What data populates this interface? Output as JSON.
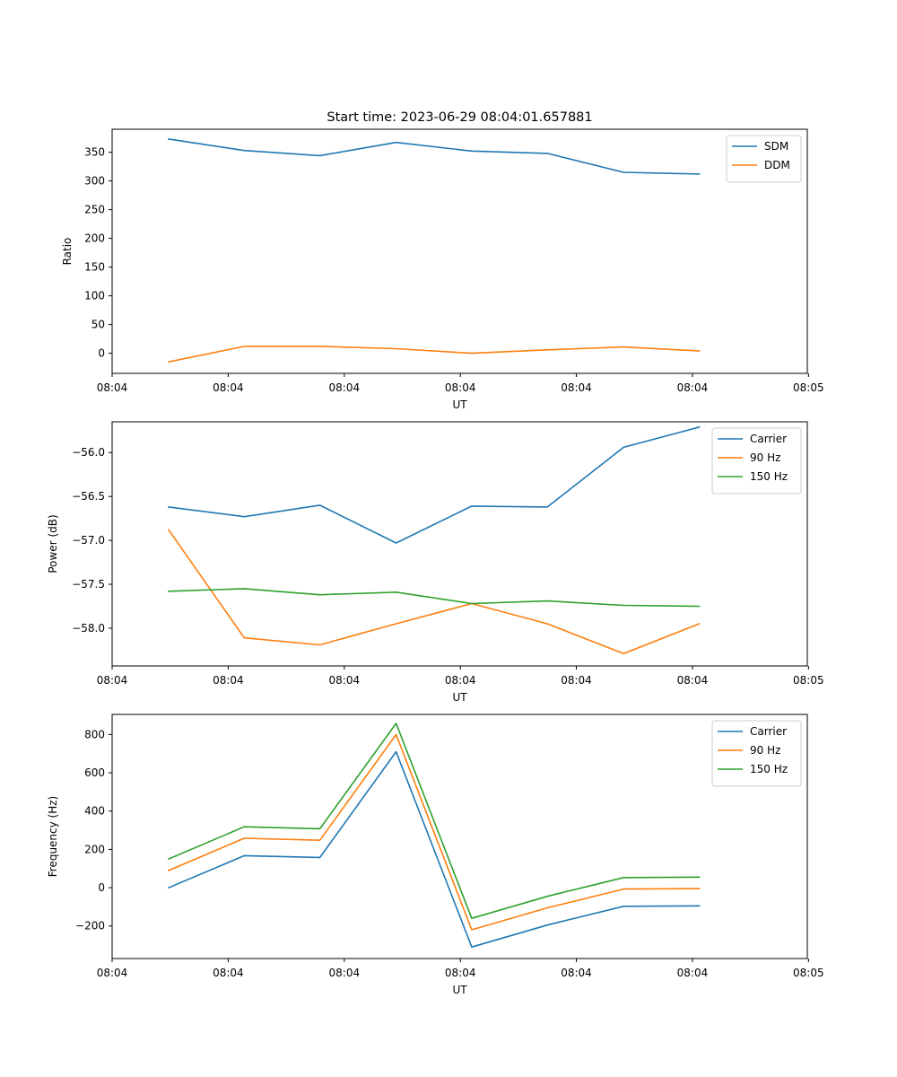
{
  "chart_data": [
    {
      "type": "line",
      "title": "Start time: 2023-06-29 08:04:01.657881",
      "xlabel": "UT",
      "ylabel": "Ratio",
      "xlim": [
        0,
        9.84
      ],
      "x_tick_values": [
        0,
        1.643,
        3.286,
        4.929,
        6.571,
        8.214,
        9.857
      ],
      "x_tick_labels": [
        "08:04",
        "08:04",
        "08:04",
        "08:04",
        "08:04",
        "08:04",
        "08:05"
      ],
      "ylim": [
        -35,
        390
      ],
      "y_ticks": [
        0,
        50,
        100,
        150,
        200,
        250,
        300,
        350
      ],
      "legend_position": "upper right",
      "x": [
        0.8,
        1.87,
        2.94,
        4.02,
        5.09,
        6.16,
        7.24,
        8.31
      ],
      "series": [
        {
          "name": "SDM",
          "color": "#1f77b4",
          "values": [
            373,
            353,
            344,
            367,
            352,
            348,
            315,
            312
          ]
        },
        {
          "name": "DDM",
          "color": "#ff7f0e",
          "values": [
            -15,
            12,
            12,
            8,
            0,
            6,
            11,
            4
          ]
        }
      ]
    },
    {
      "type": "line",
      "title": "",
      "xlabel": "UT",
      "ylabel": "Power (dB)",
      "xlim": [
        0,
        9.84
      ],
      "x_tick_values": [
        0,
        1.643,
        3.286,
        4.929,
        6.571,
        8.214,
        9.857
      ],
      "x_tick_labels": [
        "08:04",
        "08:04",
        "08:04",
        "08:04",
        "08:04",
        "08:04",
        "08:05"
      ],
      "ylim": [
        -58.43,
        -55.65
      ],
      "y_ticks": [
        -58.0,
        -57.5,
        -57.0,
        -56.5,
        -56.0
      ],
      "y_tick_labels": [
        "−58.0",
        "−57.5",
        "−57.0",
        "−56.5",
        "−56.0"
      ],
      "legend_position": "upper right",
      "x": [
        0.8,
        1.87,
        2.94,
        4.02,
        5.09,
        6.16,
        7.24,
        8.31
      ],
      "series": [
        {
          "name": "Carrier",
          "color": "#1f77b4",
          "values": [
            -56.62,
            -56.73,
            -56.6,
            -57.03,
            -56.61,
            -56.62,
            -55.94,
            -55.71
          ]
        },
        {
          "name": "90 Hz",
          "color": "#ff7f0e",
          "values": [
            -56.88,
            -58.11,
            -58.19,
            -57.95,
            -57.72,
            -57.95,
            -58.29,
            -57.95
          ]
        },
        {
          "name": "150 Hz",
          "color": "#2ca02c",
          "values": [
            -57.58,
            -57.55,
            -57.62,
            -57.59,
            -57.72,
            -57.69,
            -57.74,
            -57.75
          ]
        }
      ]
    },
    {
      "type": "line",
      "title": "",
      "xlabel": "UT",
      "ylabel": "Frequency (Hz)",
      "xlim": [
        0,
        9.84
      ],
      "x_tick_values": [
        0,
        1.643,
        3.286,
        4.929,
        6.571,
        8.214,
        9.857
      ],
      "x_tick_labels": [
        "08:04",
        "08:04",
        "08:04",
        "08:04",
        "08:04",
        "08:04",
        "08:05"
      ],
      "ylim": [
        -370,
        905
      ],
      "y_ticks": [
        -200,
        0,
        200,
        400,
        600,
        800
      ],
      "y_tick_labels": [
        "−200",
        "0",
        "200",
        "400",
        "600",
        "800"
      ],
      "legend_position": "upper right",
      "x": [
        0.8,
        1.87,
        2.94,
        4.02,
        5.09,
        6.16,
        7.24,
        8.31
      ],
      "series": [
        {
          "name": "Carrier",
          "color": "#1f77b4",
          "values": [
            0,
            167,
            158,
            710,
            -310,
            -195,
            -97,
            -95
          ]
        },
        {
          "name": "90 Hz",
          "color": "#ff7f0e",
          "values": [
            90,
            258,
            248,
            800,
            -220,
            -105,
            -7,
            -5
          ]
        },
        {
          "name": "150 Hz",
          "color": "#2ca02c",
          "values": [
            150,
            318,
            308,
            858,
            -160,
            -45,
            53,
            55
          ]
        }
      ]
    }
  ]
}
